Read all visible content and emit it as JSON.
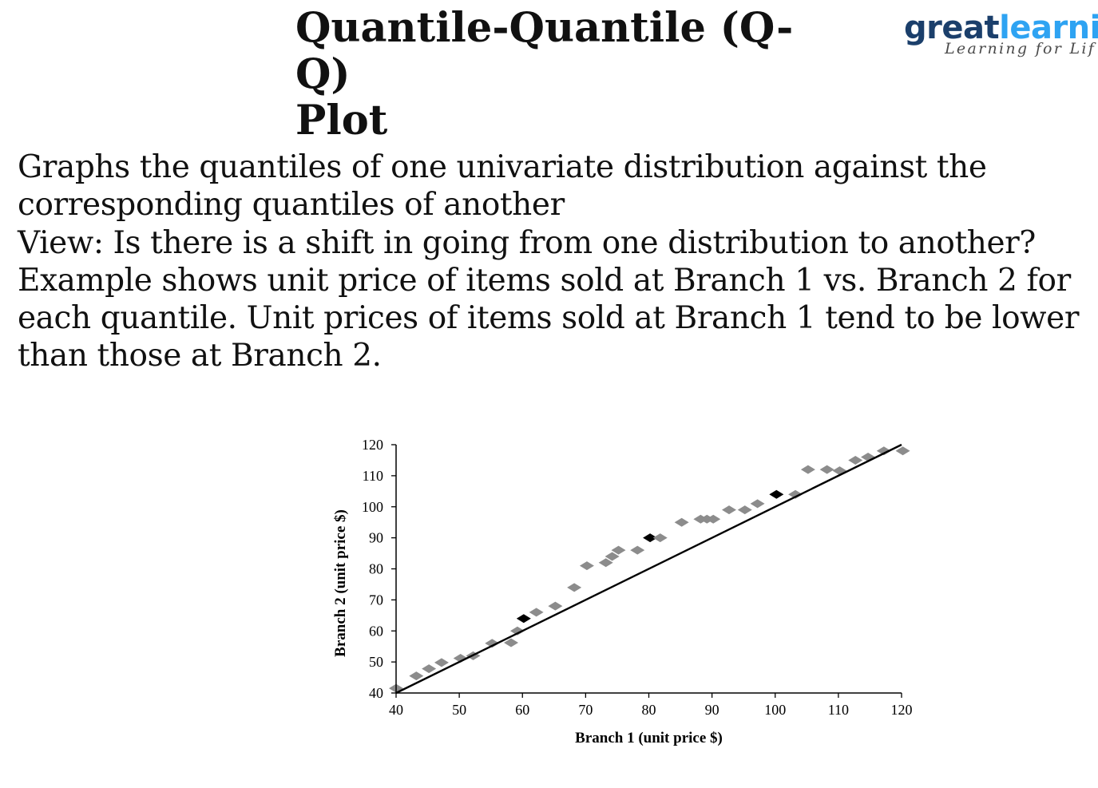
{
  "slide": {
    "title_line1": "Quantile-Quantile (Q-Q)",
    "title_line2": "Plot",
    "logo_part1": "great",
    "logo_part2": "learni",
    "logo_tagline": "Learning for Lif",
    "bullets": [
      "Graphs the quantiles of one univariate distribution against the corresponding quantiles of another",
      "View: Is there is a shift in going from one distribution to another?",
      "Example shows unit price of items sold at Branch 1 vs. Branch 2 for each quantile.  Unit prices of items sold at Branch 1 tend to be lower than those at Branch 2."
    ]
  },
  "colors": {
    "point": "#8c8c8c",
    "highlight_point": "#000000",
    "reference_line": "#000000",
    "logo_dark": "#1b3f6b",
    "logo_light": "#2ea3f2"
  },
  "chart_data": {
    "type": "scatter",
    "title": "",
    "xlabel": "Branch 1 (unit price $)",
    "ylabel": "Branch 2 (unit price $)",
    "xlim": [
      40,
      120
    ],
    "ylim": [
      40,
      120
    ],
    "xticks": [
      40,
      50,
      60,
      70,
      80,
      90,
      100,
      110,
      120
    ],
    "yticks": [
      40,
      50,
      60,
      70,
      80,
      90,
      100,
      110,
      120
    ],
    "grid": false,
    "reference_line": {
      "from": [
        40,
        40
      ],
      "to": [
        120,
        120
      ]
    },
    "points": [
      {
        "x": 40,
        "y": 41.5
      },
      {
        "x": 43.2,
        "y": 45.5
      },
      {
        "x": 45.2,
        "y": 47.8
      },
      {
        "x": 47.2,
        "y": 49.8
      },
      {
        "x": 50.2,
        "y": 51.2
      },
      {
        "x": 52.2,
        "y": 52
      },
      {
        "x": 55.2,
        "y": 56
      },
      {
        "x": 58.2,
        "y": 56.2
      },
      {
        "x": 59.2,
        "y": 60
      },
      {
        "x": 60.2,
        "y": 64,
        "highlight": true
      },
      {
        "x": 62.2,
        "y": 66
      },
      {
        "x": 65.2,
        "y": 68
      },
      {
        "x": 68.2,
        "y": 74
      },
      {
        "x": 70.2,
        "y": 81
      },
      {
        "x": 73.2,
        "y": 82
      },
      {
        "x": 74.2,
        "y": 84
      },
      {
        "x": 75.2,
        "y": 86
      },
      {
        "x": 78.2,
        "y": 86
      },
      {
        "x": 80.2,
        "y": 90,
        "highlight": true
      },
      {
        "x": 81.8,
        "y": 90
      },
      {
        "x": 85.2,
        "y": 95
      },
      {
        "x": 88.2,
        "y": 96
      },
      {
        "x": 89.2,
        "y": 96
      },
      {
        "x": 90.2,
        "y": 96
      },
      {
        "x": 92.7,
        "y": 99
      },
      {
        "x": 95.2,
        "y": 99
      },
      {
        "x": 97.2,
        "y": 101
      },
      {
        "x": 100.2,
        "y": 104,
        "highlight": true
      },
      {
        "x": 103.2,
        "y": 104
      },
      {
        "x": 105.2,
        "y": 112
      },
      {
        "x": 108.2,
        "y": 112
      },
      {
        "x": 110.2,
        "y": 111.6
      },
      {
        "x": 112.7,
        "y": 115
      },
      {
        "x": 114.7,
        "y": 116
      },
      {
        "x": 117.2,
        "y": 118
      },
      {
        "x": 120.2,
        "y": 118
      }
    ]
  }
}
